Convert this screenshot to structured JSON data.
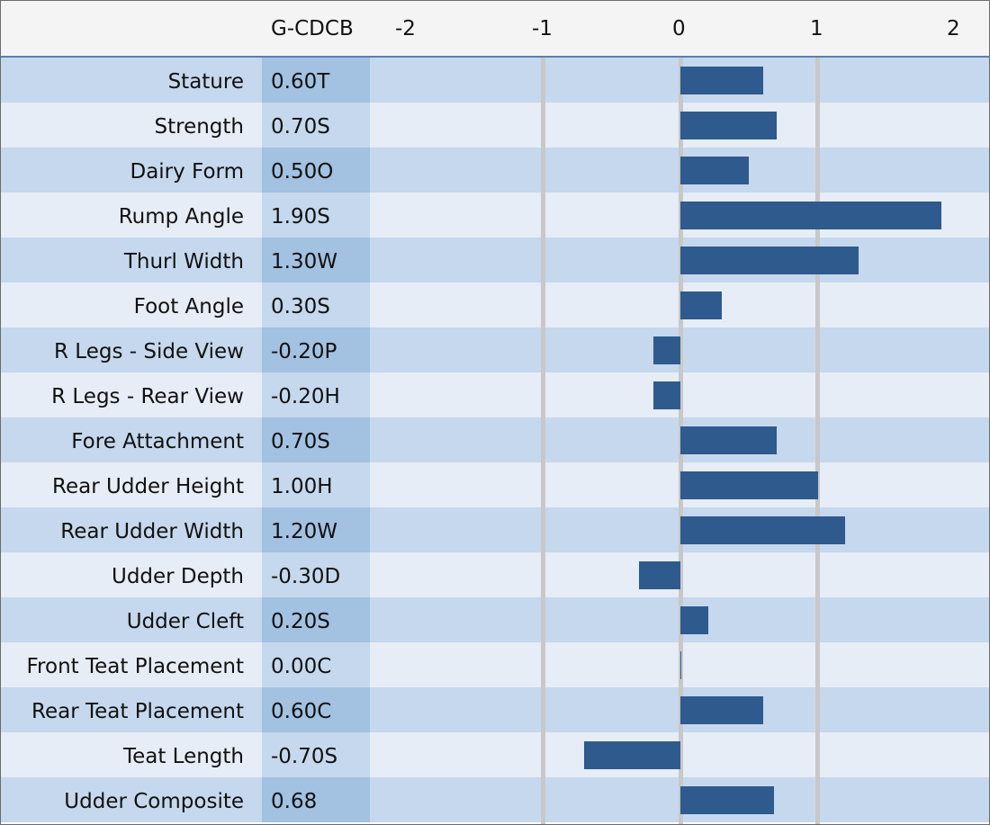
{
  "chart_data": {
    "type": "bar",
    "orientation": "horizontal",
    "column_header": "G-CDCB",
    "xlim": [
      -2,
      2
    ],
    "ticks": [
      "-2",
      "-1",
      "0",
      "1",
      "2"
    ],
    "tick_values": [
      -2,
      -1,
      0,
      1,
      2
    ],
    "colors": {
      "bar": "#2e5a8e",
      "row_odd": "#c5d8ed",
      "row_even": "#e6edf6"
    },
    "rows": [
      {
        "label": "Stature",
        "code": "0.60T",
        "value": 0.6
      },
      {
        "label": "Strength",
        "code": "0.70S",
        "value": 0.7
      },
      {
        "label": "Dairy Form",
        "code": "0.50O",
        "value": 0.5
      },
      {
        "label": "Rump Angle",
        "code": "1.90S",
        "value": 1.9
      },
      {
        "label": "Thurl Width",
        "code": "1.30W",
        "value": 1.3
      },
      {
        "label": "Foot Angle",
        "code": "0.30S",
        "value": 0.3
      },
      {
        "label": "R Legs - Side View",
        "code": "-0.20P",
        "value": -0.2
      },
      {
        "label": "R Legs - Rear View",
        "code": "-0.20H",
        "value": -0.2
      },
      {
        "label": "Fore Attachment",
        "code": "0.70S",
        "value": 0.7
      },
      {
        "label": "Rear Udder Height",
        "code": "1.00H",
        "value": 1.0
      },
      {
        "label": "Rear Udder Width",
        "code": "1.20W",
        "value": 1.2
      },
      {
        "label": "Udder Depth",
        "code": "-0.30D",
        "value": -0.3
      },
      {
        "label": "Udder Cleft",
        "code": "0.20S",
        "value": 0.2
      },
      {
        "label": "Front Teat Placement",
        "code": "0.00C",
        "value": 0.0
      },
      {
        "label": "Rear Teat Placement",
        "code": "0.60C",
        "value": 0.6
      },
      {
        "label": "Teat Length",
        "code": "-0.70S",
        "value": -0.7
      },
      {
        "label": "Udder Composite",
        "code": "0.68",
        "value": 0.68
      }
    ]
  }
}
